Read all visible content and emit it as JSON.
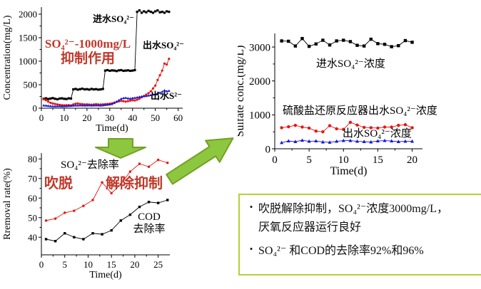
{
  "colors": {
    "series_black": "#000000",
    "series_red": "#e8140e",
    "series_blue": "#1616d8",
    "annotation_red": "#c0392b",
    "arrow_fill": "#8dc63f",
    "arrow_stroke": "#73a024",
    "box_border": "#b2d235"
  },
  "chart_data": [
    {
      "type": "line",
      "xlabel": "Time(d)",
      "ylabel": "Concentration(mg/L)",
      "xlim": [
        0,
        62
      ],
      "ylim": [
        0,
        2150
      ],
      "xticks": [
        0,
        10,
        20,
        30,
        40,
        50,
        60
      ],
      "yticks": [
        0,
        500,
        1000,
        1500,
        2000
      ],
      "series": [
        {
          "name": "进水SO₄²⁻",
          "color": "#000000",
          "marker": "square",
          "x_start": 1,
          "x_step": 1,
          "y": [
            200,
            210,
            195,
            205,
            215,
            200,
            190,
            205,
            210,
            200,
            195,
            210,
            205,
            400,
            410,
            395,
            405,
            415,
            400,
            405,
            395,
            410,
            400,
            405,
            395,
            400,
            410,
            800,
            810,
            795,
            805,
            800,
            790,
            805,
            810,
            795,
            800,
            805,
            795,
            800,
            810,
            2050,
            2080,
            2030,
            2060,
            2040,
            2070,
            2050,
            2030,
            2060,
            2080,
            2040,
            2050,
            2030,
            2060,
            2050
          ]
        },
        {
          "name": "出水SO₄²⁻",
          "color": "#e8140e",
          "marker": "circle",
          "x_start": 1,
          "x_step": 1,
          "y": [
            190,
            170,
            140,
            115,
            100,
            90,
            80,
            70,
            65,
            60,
            62,
            65,
            60,
            80,
            95,
            100,
            90,
            85,
            80,
            82,
            78,
            75,
            80,
            85,
            80,
            78,
            82,
            85,
            90,
            95,
            105,
            120,
            135,
            145,
            155,
            150,
            140,
            150,
            160,
            170,
            165,
            180,
            200,
            230,
            260,
            290,
            320,
            360,
            420,
            480,
            600,
            700,
            800,
            950,
            930,
            1050
          ]
        },
        {
          "name": "出水S²⁻",
          "color": "#1616d8",
          "marker": "triangle",
          "x_start": 1,
          "x_step": 1,
          "y": [
            60,
            55,
            50,
            45,
            42,
            40,
            42,
            45,
            40,
            42,
            45,
            48,
            50,
            55,
            60,
            58,
            62,
            60,
            58,
            60,
            62,
            58,
            60,
            62,
            60,
            58,
            62,
            70,
            75,
            80,
            90,
            110,
            140,
            170,
            200,
            215,
            220,
            210,
            205,
            215,
            220,
            230,
            240,
            250,
            255,
            260,
            270,
            280,
            290,
            300,
            320,
            330,
            350,
            380,
            360,
            370
          ]
        }
      ]
    },
    {
      "type": "line",
      "xlabel": "Time(d)",
      "ylabel": "Rremoval rate(%)",
      "xlim": [
        0,
        27.5
      ],
      "ylim": [
        31,
        83
      ],
      "xticks": [
        0,
        5,
        10,
        15,
        20,
        25
      ],
      "yticks": [
        40,
        50,
        60,
        70,
        80
      ],
      "series": [
        {
          "name": "SO₄²⁻去除率",
          "color": "#e8140e",
          "marker": "circle",
          "x": [
            1,
            3,
            5,
            7,
            9,
            11,
            13,
            15,
            17,
            19,
            21,
            23,
            25,
            27
          ],
          "y": [
            48.5,
            49.5,
            52.5,
            53.5,
            56,
            59,
            68,
            62.5,
            67,
            73.5,
            77.5,
            76,
            79.5,
            78
          ]
        },
        {
          "name": "COD去除率",
          "color": "#000000",
          "marker": "square",
          "x": [
            1,
            3,
            5,
            7,
            9,
            11,
            13,
            15,
            17,
            19,
            21,
            23,
            25,
            27
          ],
          "y": [
            39,
            38,
            42,
            40,
            39,
            42,
            41.5,
            43.5,
            48.5,
            51.5,
            55.5,
            58,
            57.5,
            59
          ]
        }
      ]
    },
    {
      "type": "line",
      "xlabel": "Time(d)",
      "ylabel": "Sulfate conc.(mg/L)",
      "xlim": [
        0,
        21.5
      ],
      "ylim": [
        0,
        3400
      ],
      "xticks": [
        0,
        5,
        10,
        15,
        20
      ],
      "yticks": [
        0,
        1000,
        2000,
        3000
      ],
      "series": [
        {
          "name": "进水SO₄²⁻浓度",
          "color": "#000000",
          "marker": "square",
          "x_start": 1,
          "x_step": 1,
          "y": [
            3180,
            3170,
            3030,
            3250,
            3020,
            3090,
            3200,
            3060,
            3180,
            3200,
            3160,
            3050,
            3030,
            3230,
            3100,
            3080,
            3010,
            3040,
            3190,
            3140
          ]
        },
        {
          "name": "硫酸盐还原反应器出水SO₄²⁻浓度",
          "color": "#e8140e",
          "marker": "circle",
          "x_start": 1,
          "x_step": 1,
          "y": [
            620,
            650,
            690,
            640,
            610,
            520,
            500,
            680,
            590,
            570,
            780,
            700,
            630,
            620,
            610,
            640,
            640,
            690,
            710,
            620
          ]
        },
        {
          "name": "出水SO₄²⁻浓度",
          "color": "#1616d8",
          "marker": "triangle",
          "x_start": 1,
          "x_step": 1,
          "y": [
            180,
            230,
            210,
            250,
            220,
            230,
            200,
            190,
            220,
            240,
            240,
            220,
            210,
            200,
            230,
            240,
            230,
            210,
            220,
            220
          ]
        }
      ]
    }
  ],
  "annotations": {
    "chart1_line1": "SO₄²⁻-1000mg/L",
    "chart1_line2": "抑制作用",
    "chart2_left": "吹脱",
    "chart2_right": "解除抑制",
    "label_influent_so4": "进水SO₄²⁻",
    "label_effluent_so4": "出水SO₄²⁻",
    "label_effluent_s": "出水S²⁻",
    "label_so4_removal": "SO₄²⁻去除率",
    "label_cod_line1": "COD",
    "label_cod_line2": "去除率",
    "label_r_influent": "进水SO₄²⁻浓度",
    "label_r_reactor": "硫酸盐还原反应器出水SO₄²⁻浓度",
    "label_r_effluent": "出水SO₄²⁻浓度"
  },
  "summary": {
    "bullet_char": "•",
    "bullet1_line1": "吹脱解除抑制，SO₄²⁻浓度3000mg/L，",
    "bullet1_line2": "厌氧反应器运行良好",
    "bullet2": "SO₄²⁻ 和COD的去除率92%和96%"
  }
}
